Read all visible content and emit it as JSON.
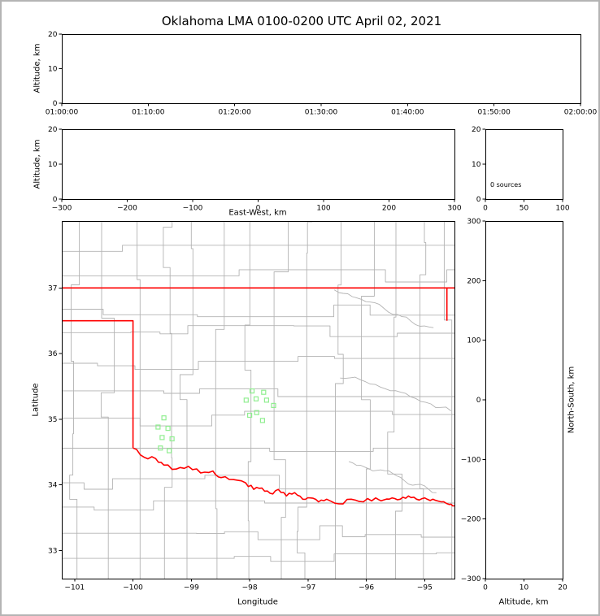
{
  "title": "Oklahoma LMA 0100-0200 UTC April 02, 2021",
  "labels": {
    "altitude_km": "Altitude, km",
    "east_west_km": "East-West, km",
    "longitude": "Longitude",
    "latitude": "Latitude",
    "north_south_km": "North-South, km",
    "sources_annotation": "0 sources"
  },
  "chart_data": [
    {
      "id": "time_height",
      "type": "scatter",
      "xlabel": "",
      "ylabel": "Altitude, km",
      "xticks": [
        "01:00:00",
        "01:10:00",
        "01:20:00",
        "01:30:00",
        "01:40:00",
        "01:50:00",
        "02:00:00"
      ],
      "ylim": [
        0,
        20
      ],
      "yticks": [
        0,
        10,
        20
      ],
      "points": []
    },
    {
      "id": "ew_height",
      "type": "scatter",
      "xlabel": "East-West, km",
      "ylabel": "Altitude, km",
      "xlim": [
        -300,
        300
      ],
      "xticks": [
        -300,
        -200,
        -100,
        0,
        100,
        200,
        300
      ],
      "ylim": [
        0,
        20
      ],
      "yticks": [
        0,
        10,
        20
      ],
      "points": []
    },
    {
      "id": "histogram",
      "type": "line",
      "annotation": "0 sources",
      "xlim": [
        0,
        100
      ],
      "xticks": [
        0,
        50,
        100
      ],
      "ylim": [
        0,
        20
      ],
      "yticks": [
        0,
        10,
        20
      ],
      "points": []
    },
    {
      "id": "plan_view_map",
      "type": "scatter",
      "xlabel": "Longitude",
      "ylabel": "Latitude",
      "xlim": [
        -101.22,
        -94.49
      ],
      "xticks": [
        -101,
        -100,
        -99,
        -98,
        -97,
        -96,
        -95
      ],
      "ylim": [
        32.57,
        38.02
      ],
      "yticks": [
        33,
        34,
        35,
        36,
        37
      ],
      "colors": {
        "state_border": "#ff0000",
        "county_lines": "#b3b3b3",
        "station_marker": "#90ee90"
      },
      "stations": [
        [
          -99.47,
          35.02
        ],
        [
          -99.57,
          34.88
        ],
        [
          -99.4,
          34.86
        ],
        [
          -99.5,
          34.72
        ],
        [
          -99.33,
          34.7
        ],
        [
          -99.53,
          34.56
        ],
        [
          -99.38,
          34.52
        ],
        [
          -97.96,
          35.43
        ],
        [
          -97.76,
          35.41
        ],
        [
          -98.06,
          35.29
        ],
        [
          -97.89,
          35.31
        ],
        [
          -97.71,
          35.29
        ],
        [
          -97.59,
          35.21
        ],
        [
          -98.0,
          35.06
        ],
        [
          -97.88,
          35.1
        ],
        [
          -97.78,
          34.98
        ]
      ],
      "state_border": {
        "kansas_line": [
          [
            -101.22,
            37.0
          ],
          [
            -94.49,
            37.0
          ]
        ],
        "missouri_segment": [
          [
            -94.62,
            37.0
          ],
          [
            -94.62,
            36.5
          ]
        ],
        "panhandle": [
          [
            -101.22,
            36.5
          ],
          [
            -100.0,
            36.5
          ],
          [
            -100.0,
            34.56
          ]
        ],
        "red_river": [
          [
            -100.0,
            34.56
          ],
          [
            -99.81,
            34.42
          ],
          [
            -99.61,
            34.4
          ],
          [
            -99.47,
            34.3
          ],
          [
            -99.26,
            34.24
          ],
          [
            -99.05,
            34.28
          ],
          [
            -98.84,
            34.18
          ],
          [
            -98.63,
            34.21
          ],
          [
            -98.49,
            34.11
          ],
          [
            -98.28,
            34.08
          ],
          [
            -98.07,
            34.03
          ],
          [
            -97.93,
            33.93
          ],
          [
            -97.79,
            33.95
          ],
          [
            -97.65,
            33.87
          ],
          [
            -97.51,
            33.93
          ],
          [
            -97.37,
            33.83
          ],
          [
            -97.23,
            33.88
          ],
          [
            -97.09,
            33.78
          ],
          [
            -96.96,
            33.8
          ],
          [
            -96.82,
            33.74
          ],
          [
            -96.68,
            33.78
          ],
          [
            -96.47,
            33.71
          ],
          [
            -96.26,
            33.78
          ],
          [
            -96.05,
            33.74
          ],
          [
            -95.84,
            33.8
          ],
          [
            -95.7,
            33.77
          ],
          [
            -95.56,
            33.8
          ],
          [
            -95.42,
            33.78
          ],
          [
            -95.28,
            33.83
          ],
          [
            -95.14,
            33.78
          ],
          [
            -95.0,
            33.8
          ],
          [
            -94.86,
            33.78
          ],
          [
            -94.72,
            33.74
          ],
          [
            -94.58,
            33.7
          ],
          [
            -94.49,
            33.68
          ]
        ]
      },
      "gray_rivers": [
        {
          "from": [
            -96.55,
            36.95
          ],
          "to": [
            -94.85,
            36.3
          ]
        },
        {
          "from": [
            -96.45,
            35.6
          ],
          "to": [
            -94.55,
            35.05
          ]
        },
        {
          "from": [
            -96.3,
            34.35
          ],
          "to": [
            -94.8,
            33.95
          ]
        }
      ]
    },
    {
      "id": "ns_height",
      "type": "scatter",
      "xlabel": "Altitude, km",
      "ylabel": "North-South, km",
      "xlim": [
        0,
        20
      ],
      "xticks": [
        0,
        10,
        20
      ],
      "ylim": [
        -300,
        300
      ],
      "yticks": [
        -300,
        -200,
        -100,
        0,
        100,
        200,
        300
      ],
      "points": []
    }
  ]
}
